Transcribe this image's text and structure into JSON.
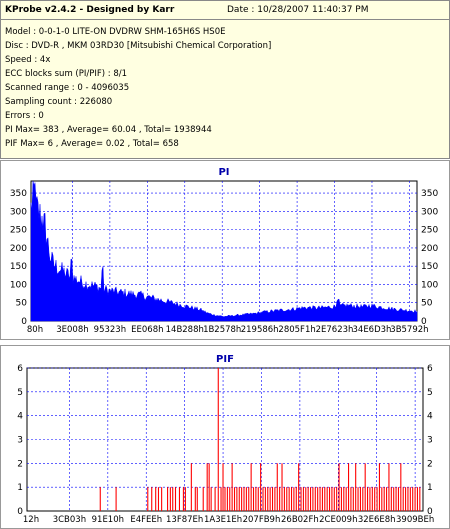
{
  "header": {
    "title": "KProbe v2.4.2 - Designed by Karr",
    "date": "Date : 10/28/2007 11:40:37 PM"
  },
  "info_lines": [
    "Model : 0-0-1-0 LITE-ON DVDRW SHM-165H6S HS0E",
    "Disc : DVD-R , MKM 03RD30  [Mitsubishi Chemical Corporation]",
    "Speed : 4x",
    "ECC blocks sum (PI/PIF) : 8/1",
    "Scanned range : 0 - 4096035",
    "Sampling count : 226080",
    "Errors : 0",
    "PI Max= 383 , Average= 60.04 , Total= 1938944",
    "PIF Max= 6 , Average= 0.02 , Total= 658"
  ],
  "colors": {
    "plot_bg": "#ffffff",
    "pi_fill": "#0000ff",
    "pif_bar": "#ff0000",
    "grid": "#0000ff",
    "title": "#0000aa"
  },
  "chart_data": [
    {
      "type": "area",
      "title": "PI",
      "xlabel": "",
      "ylabel": "",
      "ylim": [
        0,
        383
      ],
      "yticks": [
        0,
        50,
        100,
        150,
        200,
        250,
        300,
        350
      ],
      "xticks": [
        "80h",
        "3E008h",
        "95323h",
        "EE068h",
        "14B288h",
        "1B2578h",
        "219586h",
        "2805F1h",
        "2E7623h",
        "34E6D3h",
        "3B5792h"
      ],
      "grid": true,
      "profile": [
        [
          0,
          300
        ],
        [
          0.5,
          330
        ],
        [
          1,
          310
        ],
        [
          2,
          290
        ],
        [
          3,
          270
        ],
        [
          4,
          230
        ],
        [
          5,
          170
        ],
        [
          6,
          150
        ],
        [
          8,
          135
        ],
        [
          10,
          120
        ],
        [
          12,
          110
        ],
        [
          14,
          100
        ],
        [
          16,
          95
        ],
        [
          18,
          88
        ],
        [
          20,
          82
        ],
        [
          22,
          78
        ],
        [
          24,
          75
        ],
        [
          26,
          72
        ],
        [
          28,
          70
        ],
        [
          30,
          65
        ],
        [
          32,
          60
        ],
        [
          34,
          55
        ],
        [
          36,
          50
        ],
        [
          38,
          45
        ],
        [
          40,
          40
        ],
        [
          42,
          35
        ],
        [
          44,
          30
        ],
        [
          46,
          20
        ],
        [
          48,
          15
        ],
        [
          50,
          12
        ],
        [
          52,
          14
        ],
        [
          54,
          16
        ],
        [
          56,
          18
        ],
        [
          58,
          20
        ],
        [
          60,
          24
        ],
        [
          62,
          26
        ],
        [
          64,
          28
        ],
        [
          66,
          30
        ],
        [
          68,
          32
        ],
        [
          70,
          35
        ],
        [
          72,
          36
        ],
        [
          74,
          35
        ],
        [
          76,
          36
        ],
        [
          78,
          38
        ],
        [
          80,
          40
        ],
        [
          82,
          42
        ],
        [
          84,
          40
        ],
        [
          86,
          38
        ],
        [
          88,
          42
        ],
        [
          90,
          38
        ],
        [
          92,
          35
        ],
        [
          94,
          32
        ],
        [
          96,
          30
        ],
        [
          98,
          28
        ],
        [
          100,
          26
        ]
      ],
      "peaks": [
        [
          0.8,
          383
        ],
        [
          3.5,
          300
        ],
        [
          10.5,
          175
        ],
        [
          18.5,
          150
        ],
        [
          79.5,
          60
        ]
      ]
    },
    {
      "type": "bar",
      "title": "PIF",
      "xlabel": "",
      "ylabel": "",
      "ylim": [
        0,
        6
      ],
      "yticks": [
        0,
        1,
        2,
        3,
        4,
        5,
        6
      ],
      "xticks": [
        "12h",
        "3CB03h",
        "91E10h",
        "E4FEEh",
        "13F87Eh",
        "1A3E1Eh",
        "207FB9h",
        "26B02Fh",
        "2CE009h",
        "32E6E8h",
        "3909BEh"
      ],
      "grid": true,
      "bars": [
        [
          18.5,
          1
        ],
        [
          22.5,
          1
        ],
        [
          30.5,
          1
        ],
        [
          31.5,
          1
        ],
        [
          32.5,
          1
        ],
        [
          33.2,
          1
        ],
        [
          34,
          1
        ],
        [
          35.5,
          1
        ],
        [
          36.2,
          1
        ],
        [
          36.8,
          1
        ],
        [
          37.5,
          1
        ],
        [
          38.5,
          1
        ],
        [
          39.5,
          1
        ],
        [
          40,
          1
        ],
        [
          41.5,
          2
        ],
        [
          42.5,
          1
        ],
        [
          43,
          1
        ],
        [
          44.5,
          1
        ],
        [
          45.5,
          2
        ],
        [
          46,
          2
        ],
        [
          46.5,
          1
        ],
        [
          47.5,
          1
        ],
        [
          48.3,
          6
        ],
        [
          49,
          1
        ],
        [
          49.5,
          2
        ],
        [
          50,
          1
        ],
        [
          50.6,
          1
        ],
        [
          51.2,
          1
        ],
        [
          51.8,
          2
        ],
        [
          52.4,
          1
        ],
        [
          53,
          1
        ],
        [
          53.6,
          1
        ],
        [
          54.2,
          1
        ],
        [
          54.8,
          1
        ],
        [
          55.4,
          1
        ],
        [
          56,
          1
        ],
        [
          56.6,
          2
        ],
        [
          57.2,
          1
        ],
        [
          57.8,
          1
        ],
        [
          58.4,
          1
        ],
        [
          59,
          2
        ],
        [
          59.6,
          1
        ],
        [
          60.2,
          1
        ],
        [
          60.8,
          1
        ],
        [
          61.4,
          1
        ],
        [
          62,
          1
        ],
        [
          62.6,
          1
        ],
        [
          63.2,
          2
        ],
        [
          63.8,
          1
        ],
        [
          64.4,
          2
        ],
        [
          65,
          1
        ],
        [
          65.6,
          1
        ],
        [
          66.2,
          1
        ],
        [
          66.8,
          1
        ],
        [
          67.4,
          1
        ],
        [
          68,
          1
        ],
        [
          68.6,
          2
        ],
        [
          69.2,
          1
        ],
        [
          69.8,
          1
        ],
        [
          70.4,
          1
        ],
        [
          71,
          1
        ],
        [
          71.6,
          1
        ],
        [
          72.2,
          1
        ],
        [
          72.8,
          1
        ],
        [
          73.4,
          1
        ],
        [
          74,
          1
        ],
        [
          74.6,
          1
        ],
        [
          75.2,
          1
        ],
        [
          75.8,
          1
        ],
        [
          76.4,
          1
        ],
        [
          77,
          1
        ],
        [
          77.6,
          1
        ],
        [
          78.2,
          1
        ],
        [
          78.8,
          2
        ],
        [
          79.4,
          1
        ],
        [
          80,
          1
        ],
        [
          80.6,
          1
        ],
        [
          81.2,
          2
        ],
        [
          81.8,
          1
        ],
        [
          82.4,
          1
        ],
        [
          83,
          2
        ],
        [
          83.6,
          1
        ],
        [
          84.2,
          1
        ],
        [
          84.8,
          1
        ],
        [
          85.4,
          2
        ],
        [
          86,
          1
        ],
        [
          86.6,
          1
        ],
        [
          87.2,
          1
        ],
        [
          87.8,
          1
        ],
        [
          88.4,
          1
        ],
        [
          89,
          2
        ],
        [
          89.6,
          1
        ],
        [
          90.2,
          1
        ],
        [
          90.8,
          1
        ],
        [
          91.4,
          2
        ],
        [
          92,
          1
        ],
        [
          92.6,
          1
        ],
        [
          93.2,
          1
        ],
        [
          93.8,
          1
        ],
        [
          94.4,
          2
        ],
        [
          95,
          1
        ],
        [
          95.6,
          1
        ],
        [
          96.2,
          1
        ],
        [
          96.8,
          1
        ],
        [
          97.4,
          1
        ],
        [
          98,
          1
        ],
        [
          98.6,
          1
        ],
        [
          99.2,
          1
        ]
      ]
    }
  ]
}
